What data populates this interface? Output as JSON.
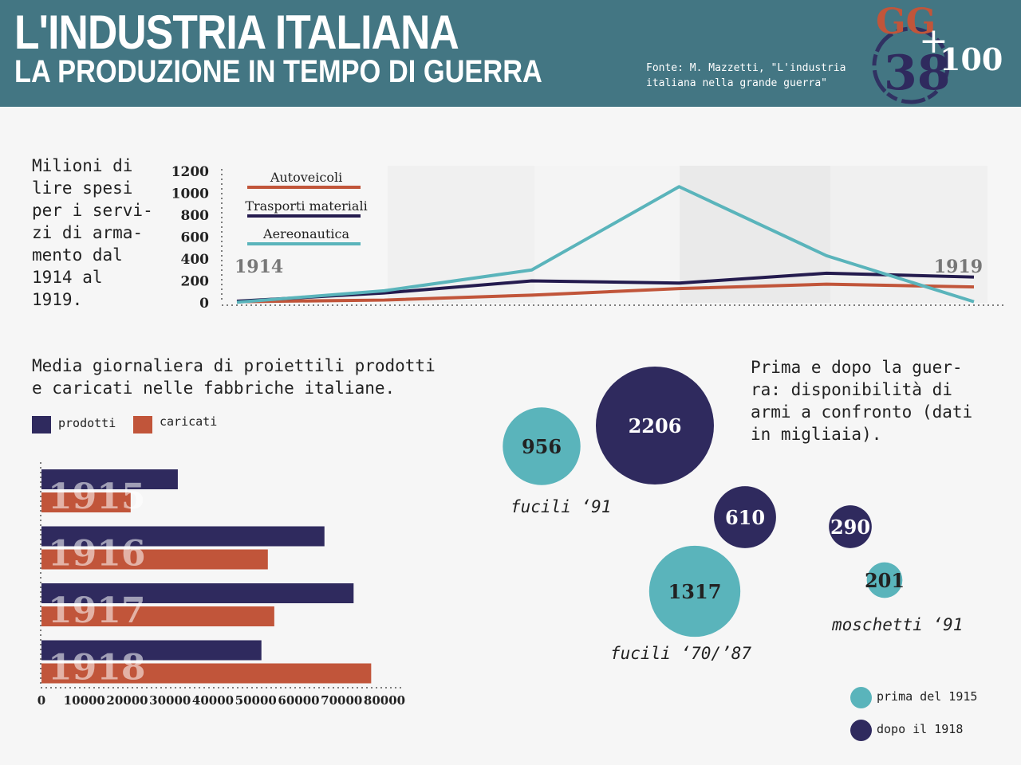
{
  "header": {
    "title_line1": "L'INDUSTRIA ITALIANA",
    "title_line2": "LA PRODUZIONE IN TEMPO DI GUERRA",
    "source": "Fonte: M. Mazzetti, \"L'industria italiana nella grande guerra\"",
    "logo": {
      "top": "GG",
      "plus": "+",
      "number": "38",
      "hundred": "100"
    }
  },
  "colors": {
    "header_bg": "#437683",
    "autoveicoli": "#c1553a",
    "trasporti": "#241b4e",
    "aereonautica": "#5ab4bb",
    "prodotti": "#2f2a5e",
    "caricati": "#c1553a",
    "prima": "#5ab4bb",
    "dopo": "#2f2a5e"
  },
  "line_section": {
    "description": "Milioni di\nlire spesi\nper i servi-\nzi di arma-\nmento dal\n1914 al\n1919."
  },
  "bar_section": {
    "description": "Media giornaliera di proiettili prodotti\ne caricati nelle fabbriche italiane.",
    "legend": {
      "prodotti": "prodotti",
      "caricati": "caricati"
    }
  },
  "bubble_section": {
    "description": "Prima e dopo la guer-\nra: disponibilità di\narmi a confronto (dati\nin migliaia).",
    "legend": {
      "prima": "prima del 1915",
      "dopo": "dopo il 1918"
    }
  },
  "chart_data": [
    {
      "type": "line",
      "x": [
        1914,
        1915,
        1916,
        1917,
        1918,
        1919
      ],
      "x_tick_labels": [
        "1914",
        "1919"
      ],
      "y_ticks": [
        0,
        200,
        400,
        600,
        800,
        1000,
        1200
      ],
      "ylim": [
        0,
        1200
      ],
      "series": [
        {
          "name": "Autoveicoli",
          "values": [
            10,
            25,
            70,
            130,
            170,
            145
          ]
        },
        {
          "name": "Trasporti materiali",
          "values": [
            15,
            90,
            200,
            180,
            270,
            235
          ]
        },
        {
          "name": "Aereonautica",
          "values": [
            5,
            110,
            300,
            1060,
            430,
            10
          ]
        }
      ]
    },
    {
      "type": "bar",
      "orientation": "horizontal",
      "categories": [
        "1915",
        "1916",
        "1917",
        "1918"
      ],
      "series": [
        {
          "name": "prodotti",
          "values": [
            31800,
            66000,
            72800,
            51300
          ]
        },
        {
          "name": "caricati",
          "values": [
            20800,
            52800,
            54300,
            76900
          ]
        }
      ],
      "x_ticks": [
        0,
        10000,
        20000,
        30000,
        40000,
        50000,
        60000,
        70000,
        80000
      ],
      "xlim": [
        0,
        80000
      ]
    },
    {
      "type": "bubble",
      "groups": [
        {
          "label": "fucili ‘91",
          "prima": 956,
          "dopo": 2206
        },
        {
          "label": "fucili ‘70/’87",
          "prima": 1317,
          "dopo": 610
        },
        {
          "label": "moschetti ‘91",
          "prima": 201,
          "dopo": 290
        }
      ]
    }
  ]
}
